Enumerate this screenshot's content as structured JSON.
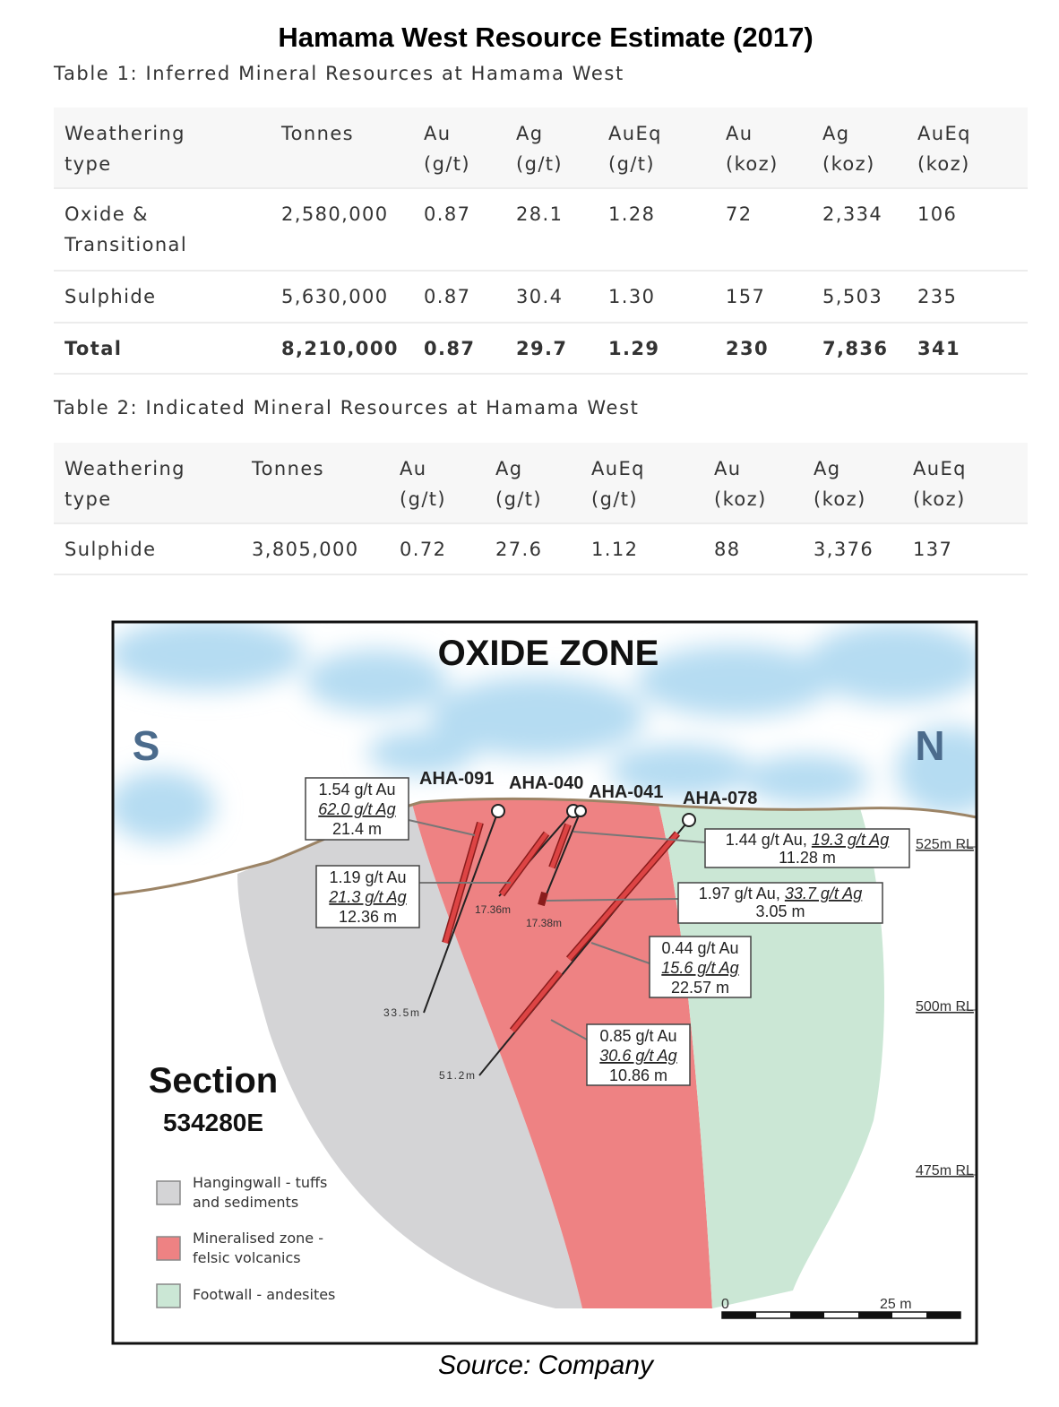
{
  "title": "Hamama West Resource Estimate (2017)",
  "tables": [
    {
      "caption": "Table 1: Inferred Mineral Resources at Hamama West",
      "header": [
        "Weathering\ntype",
        "Tonnes",
        "Au\n(g/t)",
        "Ag\n(g/t)",
        "AuEq\n(g/t)",
        "Au\n(koz)",
        "Ag\n(koz)",
        "AuEq\n(koz)"
      ],
      "rows": [
        [
          "Oxide &\nTransitional",
          "2,580,000",
          "0.87",
          "28.1",
          "1.28",
          "72",
          "2,334",
          "106"
        ],
        [
          "Sulphide",
          "5,630,000",
          "0.87",
          "30.4",
          "1.30",
          "157",
          "5,503",
          "235"
        ],
        [
          "Total",
          "8,210,000",
          "0.87",
          "29.7",
          "1.29",
          "230",
          "7,836",
          "341"
        ]
      ]
    },
    {
      "caption": "Table 2: Indicated Mineral Resources at Hamama West",
      "header": [
        "Weathering\ntype",
        "Tonnes",
        "Au\n(g/t)",
        "Ag\n(g/t)",
        "AuEq\n(g/t)",
        "Au\n(koz)",
        "Ag\n(koz)",
        "AuEq\n(koz)"
      ],
      "rows": [
        [
          "Sulphide",
          "3,805,000",
          "0.72",
          "27.6",
          "1.12",
          "88",
          "3,376",
          "137"
        ]
      ]
    }
  ],
  "figure": {
    "zone_title": "OXIDE ZONE",
    "directions": [
      "S",
      "N"
    ],
    "drillholes": [
      "AHA-091",
      "AHA-040",
      "AHA-041",
      "AHA-078"
    ],
    "intercepts": [
      {
        "au": "1.54 g/t Au",
        "ag": "62.0 g/t Ag",
        "length": "21.4 m"
      },
      {
        "au": "1.19 g/t Au",
        "ag": "21.3 g/t Ag",
        "length": "12.36 m"
      },
      {
        "au": "1.44 g/t Au,",
        "ag": "19.3 g/t Ag",
        "length": "11.28 m"
      },
      {
        "au": "1.97 g/t Au,",
        "ag": "33.7 g/t Ag",
        "length": "3.05 m"
      },
      {
        "au": "0.44 g/t Au",
        "ag": "15.6 g/t Ag",
        "length": "22.57 m"
      },
      {
        "au": "0.85 g/t Au",
        "ag": "30.6 g/t Ag",
        "length": "10.86 m"
      }
    ],
    "depths": [
      "17.36m",
      "17.38m",
      "33.5m",
      "51.2m"
    ],
    "rl_levels": [
      "525m RL",
      "500m RL",
      "475m RL"
    ],
    "section": {
      "title": "Section",
      "easting": "534280E"
    },
    "legend": [
      "Hangingwall - tuffs\nand sediments",
      "Mineralised zone -\nfelsic volcanics",
      "Footwall - andesites"
    ],
    "scale": [
      "0",
      "25 m"
    ]
  },
  "source": "Source: Company"
}
